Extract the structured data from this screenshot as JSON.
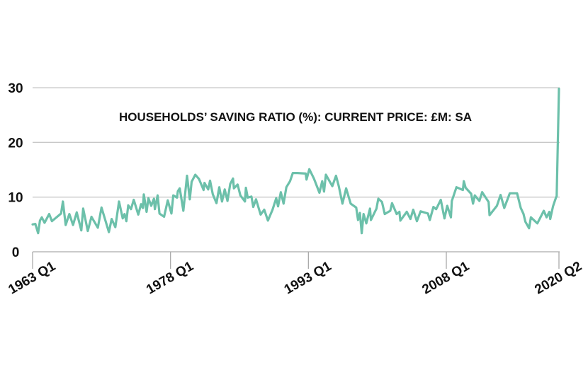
{
  "chart_data": {
    "type": "line",
    "title": "HOUSEHOLDS’ SAVING RATIO (%): CURRENT PRICE: £M: SA",
    "xlabel": "",
    "ylabel": "",
    "ylim": [
      0,
      30
    ],
    "xlim": [
      1963.0,
      2020.25
    ],
    "grid": true,
    "y_ticks": [
      0,
      10,
      20,
      30
    ],
    "y_tick_labels": [
      "0",
      "10",
      "20",
      "30"
    ],
    "x_ticks": [
      1963.0,
      1978.0,
      1993.0,
      2008.0,
      2020.25
    ],
    "x_tick_labels": [
      "1963 Q1",
      "1978 Q1",
      "1993 Q1",
      "2008 Q1",
      "2020 Q2"
    ],
    "colors": {
      "line": "#6cc0aa",
      "grid": "#c8c8c8",
      "axis": "#aaaaaa",
      "text": "#111111"
    },
    "series": [
      {
        "name": "Households' saving ratio (%)",
        "x": [
          1963.0,
          1963.3,
          1963.6,
          1963.8,
          1964.0,
          1964.3,
          1964.8,
          1965.1,
          1966.1,
          1966.3,
          1966.6,
          1967.0,
          1967.4,
          1967.8,
          1968.3,
          1968.5,
          1969.0,
          1969.4,
          1970.1,
          1970.5,
          1971.3,
          1971.6,
          1972.0,
          1972.4,
          1972.8,
          1973.0,
          1973.2,
          1973.4,
          1973.7,
          1974.0,
          1974.5,
          1974.8,
          1975.0,
          1975.1,
          1975.4,
          1975.6,
          1975.9,
          1976.2,
          1976.3,
          1976.6,
          1976.8,
          1977.3,
          1977.7,
          1978.1,
          1978.3,
          1978.7,
          1978.8,
          1979.0,
          1979.4,
          1979.8,
          1980.1,
          1980.3,
          1980.7,
          1981.1,
          1981.6,
          1981.7,
          1982.1,
          1982.3,
          1982.6,
          1983.0,
          1983.3,
          1983.6,
          1983.9,
          1984.2,
          1984.5,
          1984.8,
          1984.9,
          1985.3,
          1985.6,
          1986.1,
          1986.2,
          1986.4,
          1986.8,
          1987.0,
          1987.3,
          1987.8,
          1988.2,
          1988.6,
          1989.1,
          1989.5,
          1989.7,
          1990.0,
          1990.3,
          1990.6,
          1991.0,
          1991.3,
          1991.8,
          1992.7,
          1992.8,
          1993.1,
          1993.6,
          1994.2,
          1994.5,
          1994.7,
          1994.9,
          1995.6,
          1996.0,
          1996.3,
          1996.7,
          1997.1,
          1997.6,
          1998.2,
          1998.4,
          1998.6,
          1998.8,
          1999.0,
          1999.3,
          1999.7,
          1999.8,
          2000.4,
          2000.6,
          2001.0,
          2001.3,
          2001.9,
          2002.1,
          2002.6,
          2002.9,
          2003.0,
          2003.7,
          2004.1,
          2004.4,
          2004.8,
          2005.2,
          2006.0,
          2006.2,
          2006.6,
          2006.9,
          2007.4,
          2007.8,
          2008.1,
          2008.5,
          2008.6,
          2009.1,
          2009.8,
          2009.9,
          2010.1,
          2010.7,
          2010.9,
          2011.1,
          2011.6,
          2011.9,
          2012.6,
          2012.7,
          2013.5,
          2013.9,
          2014.3,
          2014.9,
          2015.7,
          2016.1,
          2016.4,
          2016.6,
          2017.0,
          2017.2,
          2017.9,
          2018.6,
          2018.9,
          2019.2,
          2019.3,
          2019.6,
          2019.9,
          2020.0,
          2020.25
        ],
        "values": [
          5.0,
          5.1,
          3.4,
          5.7,
          6.3,
          5.3,
          6.9,
          5.6,
          7.0,
          9.2,
          4.9,
          6.9,
          4.9,
          7.2,
          3.9,
          7.9,
          3.8,
          6.4,
          4.4,
          8.1,
          3.6,
          6.0,
          4.5,
          9.2,
          6.1,
          6.9,
          5.6,
          8.5,
          7.8,
          9.5,
          6.8,
          8.7,
          8.0,
          10.5,
          7.3,
          9.8,
          8.4,
          9.7,
          7.8,
          10.3,
          7.0,
          6.4,
          9.4,
          7.0,
          10.3,
          9.9,
          11.1,
          11.6,
          7.5,
          13.9,
          9.6,
          12.8,
          14.1,
          13.3,
          11.3,
          12.6,
          11.4,
          13.0,
          10.5,
          8.9,
          11.8,
          9.2,
          11.4,
          9.3,
          12.4,
          13.4,
          11.6,
          12.3,
          10.3,
          9.2,
          11.7,
          9.9,
          10.1,
          8.2,
          9.6,
          6.8,
          7.7,
          5.7,
          7.7,
          9.8,
          8.3,
          10.9,
          8.8,
          11.8,
          12.9,
          14.4,
          14.4,
          14.3,
          13.2,
          15.1,
          13.4,
          10.8,
          12.9,
          11.0,
          14.1,
          12.0,
          13.9,
          12.0,
          8.8,
          11.6,
          8.8,
          8.1,
          5.8,
          7.1,
          3.4,
          6.9,
          5.2,
          7.9,
          5.8,
          7.9,
          9.7,
          9.1,
          6.9,
          7.5,
          8.9,
          6.9,
          7.3,
          5.7,
          7.3,
          6.0,
          7.7,
          5.6,
          7.4,
          7.0,
          5.8,
          8.2,
          7.8,
          9.5,
          6.1,
          8.4,
          6.3,
          9.3,
          11.8,
          11.3,
          12.9,
          11.7,
          10.6,
          8.8,
          10.3,
          9.3,
          10.9,
          9.1,
          6.7,
          8.4,
          10.4,
          8.0,
          10.7,
          10.7,
          8.0,
          6.9,
          5.5,
          4.3,
          6.3,
          5.2,
          7.5,
          6.3,
          7.3,
          6.0,
          8.3,
          9.8,
          10.2,
          29.8
        ]
      }
    ]
  }
}
